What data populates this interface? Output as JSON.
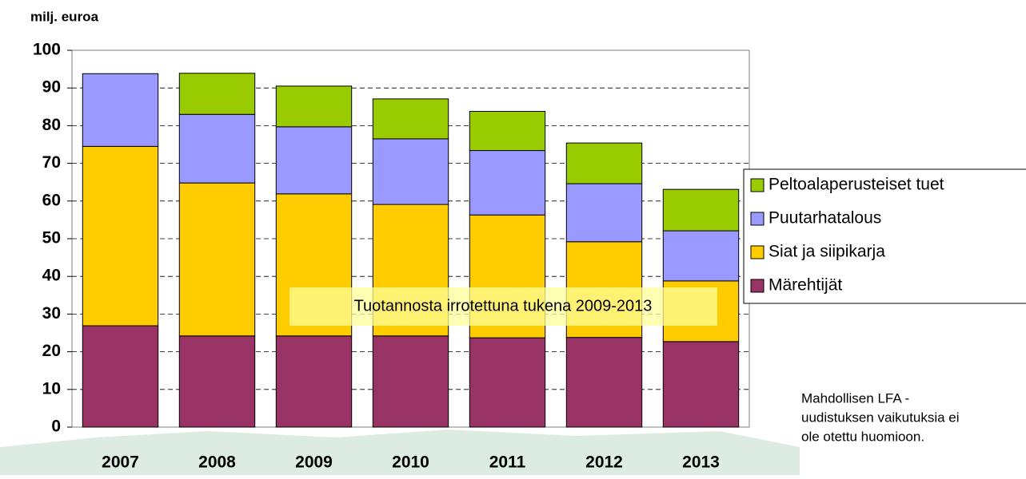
{
  "chart_data": {
    "type": "stacked_bar",
    "y_label": "milj. euroa",
    "categories": [
      "2007",
      "2008",
      "2009",
      "2010",
      "2011",
      "2012",
      "2013"
    ],
    "series": [
      {
        "name": "Märehtijät",
        "color": "#993366",
        "values": [
          26.9,
          24.2,
          24.2,
          24.2,
          23.7,
          23.8,
          22.7
        ]
      },
      {
        "name": "Siat ja siipikarja",
        "color": "#ffcc00",
        "values": [
          47.6,
          40.6,
          37.7,
          34.9,
          32.6,
          25.4,
          16.1
        ]
      },
      {
        "name": "Puutarhatalous",
        "color": "#9999ff",
        "values": [
          19.3,
          18.2,
          17.8,
          17.4,
          17.1,
          15.4,
          13.3
        ]
      },
      {
        "name": "Peltoalaperusteiset tuet",
        "color": "#99cc00",
        "values": [
          0,
          10.9,
          10.8,
          10.6,
          10.4,
          10.8,
          11.0
        ]
      }
    ],
    "ylim": [
      0,
      100
    ],
    "yticks": [
      0,
      10,
      20,
      30,
      40,
      50,
      60,
      70,
      80,
      90,
      100
    ],
    "grid": true,
    "annotation": "Tuotannosta irrotettuna tukena 2009-2013",
    "note": [
      "Mahdollisen LFA -",
      "uudistuksen vaikutuksia ei",
      "ole otettu huomioon."
    ]
  }
}
